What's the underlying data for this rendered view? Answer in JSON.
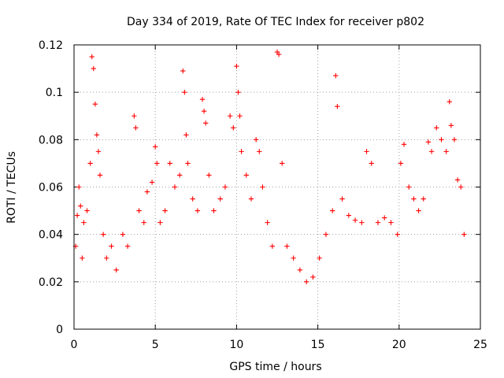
{
  "chart_data": {
    "type": "scatter",
    "title": "Day 334 of 2019, Rate Of TEC Index for receiver p802",
    "xlabel": "GPS time / hours",
    "ylabel": "ROTI / TECUs",
    "xlim": [
      0,
      25
    ],
    "ylim": [
      0,
      0.12
    ],
    "xticks": [
      0,
      5,
      10,
      15,
      20,
      25
    ],
    "xtick_labels": [
      "0",
      "5",
      "10",
      "15",
      "20",
      "25"
    ],
    "yticks": [
      0,
      0.02,
      0.04,
      0.06,
      0.08,
      0.1,
      0.12
    ],
    "ytick_labels": [
      "0",
      "0.02",
      "0.04",
      "0.06",
      "0.08",
      "0.1",
      "0.12"
    ],
    "grid": true,
    "marker": "+",
    "series": [
      {
        "name": "ROTI p802",
        "color": "#ff0000",
        "x": [
          0.1,
          0.2,
          0.3,
          0.4,
          0.5,
          0.6,
          0.8,
          1.0,
          1.1,
          1.2,
          1.3,
          1.4,
          1.5,
          1.6,
          1.8,
          2.0,
          2.3,
          2.6,
          3.0,
          3.3,
          3.7,
          3.8,
          4.0,
          4.3,
          4.5,
          4.8,
          5.0,
          5.1,
          5.3,
          5.6,
          5.9,
          6.2,
          6.5,
          6.7,
          6.8,
          6.9,
          7.0,
          7.3,
          7.6,
          7.9,
          8.0,
          8.1,
          8.3,
          8.6,
          9.0,
          9.3,
          9.6,
          9.8,
          10.0,
          10.1,
          10.2,
          10.3,
          10.6,
          10.9,
          11.2,
          11.4,
          11.6,
          11.9,
          12.2,
          12.5,
          12.6,
          12.8,
          13.1,
          13.5,
          13.9,
          14.3,
          14.7,
          15.1,
          15.5,
          15.9,
          16.1,
          16.2,
          16.5,
          16.9,
          17.3,
          17.7,
          18.0,
          18.3,
          18.7,
          19.1,
          19.5,
          19.9,
          20.1,
          20.3,
          20.6,
          20.9,
          21.2,
          21.5,
          21.8,
          22.0,
          22.3,
          22.6,
          22.9,
          23.1,
          23.2,
          23.4,
          23.6,
          23.8,
          24.0
        ],
        "y": [
          0.035,
          0.048,
          0.06,
          0.052,
          0.03,
          0.045,
          0.05,
          0.07,
          0.115,
          0.11,
          0.095,
          0.082,
          0.075,
          0.065,
          0.04,
          0.03,
          0.035,
          0.025,
          0.04,
          0.035,
          0.09,
          0.085,
          0.05,
          0.045,
          0.058,
          0.062,
          0.077,
          0.07,
          0.045,
          0.05,
          0.07,
          0.06,
          0.065,
          0.109,
          0.1,
          0.082,
          0.07,
          0.055,
          0.05,
          0.097,
          0.092,
          0.087,
          0.065,
          0.05,
          0.055,
          0.06,
          0.09,
          0.085,
          0.111,
          0.1,
          0.09,
          0.075,
          0.065,
          0.055,
          0.08,
          0.075,
          0.06,
          0.045,
          0.035,
          0.117,
          0.116,
          0.07,
          0.035,
          0.03,
          0.025,
          0.02,
          0.022,
          0.03,
          0.04,
          0.05,
          0.107,
          0.094,
          0.055,
          0.048,
          0.046,
          0.045,
          0.075,
          0.07,
          0.045,
          0.047,
          0.045,
          0.04,
          0.07,
          0.078,
          0.06,
          0.055,
          0.05,
          0.055,
          0.079,
          0.075,
          0.085,
          0.08,
          0.075,
          0.096,
          0.086,
          0.08,
          0.063,
          0.06,
          0.04
        ]
      }
    ]
  }
}
